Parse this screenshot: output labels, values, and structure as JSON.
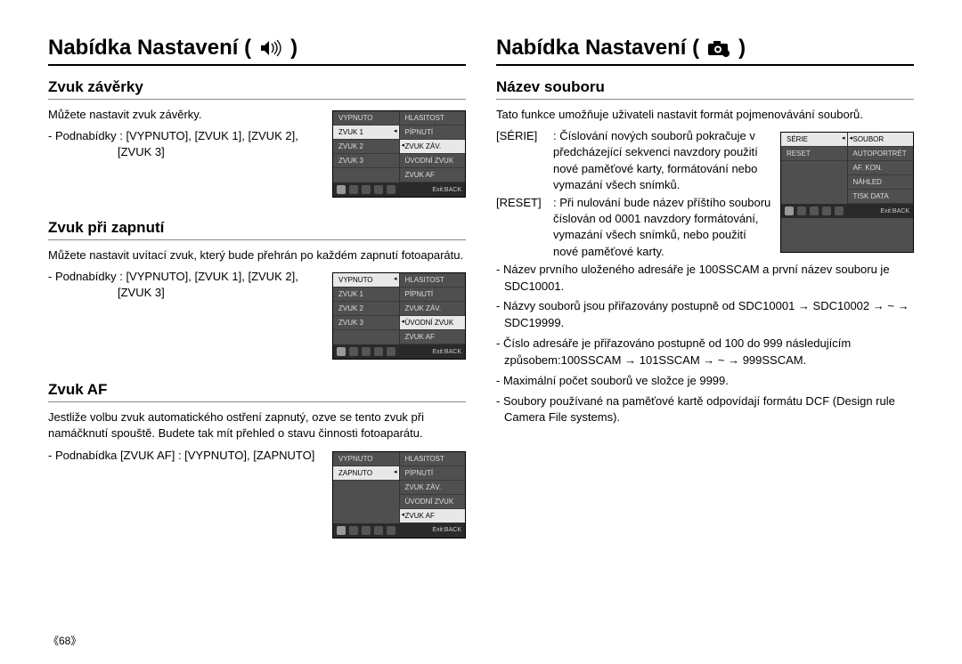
{
  "left": {
    "heading": "Nabídka Nastavení (",
    "heading_close": ")",
    "sec1": {
      "title": "Zvuk závěrky",
      "body": "Můžete nastavit zvuk závěrky.",
      "sub1": "- Podnabídky : [VYPNUTO], [ZVUK 1], [ZVUK 2],",
      "sub2": "[ZVUK 3]",
      "menuL": [
        "VYPNUTO",
        "ZVUK 1",
        "ZVUK 2",
        "ZVUK 3"
      ],
      "menuR": [
        "HLASITOST",
        "PÍPNUTÍ",
        "ZVUK ZÁV.",
        "ÚVODNÍ ZVUK",
        "ZVUK AF"
      ],
      "selL": 1,
      "selR": 2,
      "exit": "Exit:BACK"
    },
    "sec2": {
      "title": "Zvuk při zapnutí",
      "body": "Můžete nastavit uvítací zvuk, který bude přehrán po každém zapnutí fotoaparátu.",
      "sub1": "- Podnabídky : [VYPNUTO], [ZVUK 1], [ZVUK 2],",
      "sub2": "[ZVUK 3]",
      "menuL": [
        "VYPNUTO",
        "ZVUK 1",
        "ZVUK 2",
        "ZVUK 3"
      ],
      "menuR": [
        "HLASITOST",
        "PÍPNUTÍ",
        "ZVUK ZÁV.",
        "ÚVODNÍ ZVUK",
        "ZVUK AF"
      ],
      "selL": 0,
      "selR": 3,
      "exit": "Exit:BACK"
    },
    "sec3": {
      "title": "Zvuk AF",
      "body": "Jestliže volbu zvuk automatického ostření zapnutý, ozve se tento zvuk při namáčknutí spouště. Budete tak mít přehled o stavu činnosti fotoaparátu.",
      "sub1": "- Podnabídka [ZVUK AF] : [VYPNUTO], [ZAPNUTO]",
      "menuL": [
        "VYPNUTO",
        "ZAPNUTO"
      ],
      "menuR": [
        "HLASITOST",
        "PÍPNUTÍ",
        "ZVUK ZÁV.",
        "ÚVODNÍ ZVUK",
        "ZVUK AF"
      ],
      "selL": 1,
      "selR": 4,
      "exit": "Exit:BACK"
    }
  },
  "right": {
    "heading": "Nabídka Nastavení (",
    "heading_close": ")",
    "sec1": {
      "title": "Název souboru",
      "body": "Tato funkce umožňuje uživateli nastavit formát pojmenovávání souborů.",
      "defs": [
        {
          "k": "[SÉRIE]",
          "v": ": Číslování nových souborů pokračuje v předcházející sekvenci navzdory použití nové paměťové karty, formátování nebo vymazání všech snímků."
        },
        {
          "k": "[RESET]",
          "v": ": Při nulování bude název příštího souboru číslován od 0001 navzdory formátování, vymazání všech snímků, nebo použití nové paměťové karty."
        }
      ],
      "menuL": [
        "SÉRIE",
        "RESET"
      ],
      "menuR": [
        "SOUBOR",
        "AUTOPORTRÉT",
        "AF. KON.",
        "NÁHLED",
        "TISK DATA"
      ],
      "selL": 0,
      "selR": 0,
      "exit": "Exit:BACK",
      "notes": [
        "Název prvního uloženého adresáře je 100SSCAM a první název souboru je SDC10001.",
        "Názvy souborů jsou přiřazovány postupně od SDC10001 → SDC10002 → ~ → SDC19999.",
        "Číslo adresáře je přiřazováno postupně od 100 do 999 následujícím způsobem:100SSCAM → 101SSCAM → ~ → 999SSCAM.",
        "Maximální počet souborů ve složce je 9999.",
        "Soubory používané na paměťové kartě odpovídají formátu DCF (Design rule Camera File systems)."
      ]
    }
  },
  "page_num": "《68》",
  "colors": {
    "menu_bg": "#4f4f4f",
    "sel_bg": "#e8e8e8",
    "text": "#000000"
  }
}
